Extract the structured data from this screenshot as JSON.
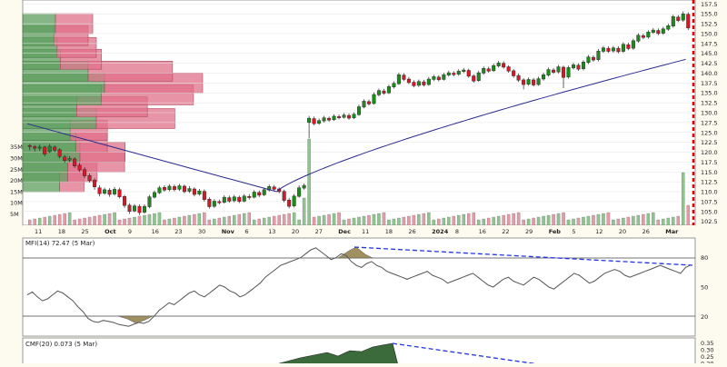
{
  "chart_data": [
    {
      "type": "candlestick",
      "title": "",
      "x_tick_labels": [
        "11",
        "18",
        "25",
        "Oct",
        "9",
        "16",
        "23",
        "30",
        "Nov",
        "6",
        "13",
        "20",
        "27",
        "Dec",
        "11",
        "18",
        "26",
        "2024",
        "8",
        "16",
        "22",
        "29",
        "Feb",
        "5",
        "12",
        "20",
        "26",
        "Mar"
      ],
      "y_tick_labels": [
        "102.5",
        "105.0",
        "107.5",
        "110.0",
        "112.5",
        "115.0",
        "117.5",
        "120.0",
        "122.5",
        "125.0",
        "127.5",
        "130.0",
        "132.5",
        "135.0",
        "137.5",
        "140.0",
        "142.5",
        "145.0",
        "147.5",
        "150.0",
        "152.5",
        "155.0",
        "157.5"
      ],
      "ylim": [
        101.5,
        158.5
      ],
      "volume_tick_labels": [
        "5M",
        "10M",
        "15M",
        "20M",
        "25M",
        "30M",
        "35M"
      ],
      "candles": [
        [
          121.7,
          121.4,
          120.5,
          122.0
        ],
        [
          121.4,
          121.0,
          120.2,
          121.8
        ],
        [
          121.0,
          121.3,
          120.4,
          121.9
        ],
        [
          121.3,
          119.5,
          119.0,
          121.6
        ],
        [
          120.1,
          121.5,
          119.8,
          122.0
        ],
        [
          121.3,
          120.5,
          120.0,
          121.7
        ],
        [
          120.6,
          118.9,
          118.4,
          121.0
        ],
        [
          118.8,
          117.9,
          117.3,
          119.3
        ],
        [
          118.0,
          118.4,
          117.5,
          119.0
        ],
        [
          118.3,
          116.5,
          116.0,
          118.7
        ],
        [
          116.7,
          115.5,
          115.0,
          117.3
        ],
        [
          115.6,
          114.0,
          113.4,
          116.2
        ],
        [
          114.1,
          112.8,
          112.3,
          114.6
        ],
        [
          112.9,
          111.2,
          110.5,
          113.4
        ],
        [
          111.0,
          109.5,
          108.8,
          111.6
        ],
        [
          109.6,
          110.5,
          109.2,
          111.0
        ],
        [
          110.4,
          109.3,
          108.7,
          110.9
        ],
        [
          109.4,
          110.6,
          109.0,
          111.2
        ],
        [
          110.5,
          108.7,
          108.3,
          111.0
        ],
        [
          108.8,
          106.5,
          105.9,
          109.2
        ],
        [
          106.6,
          105.0,
          104.4,
          107.1
        ],
        [
          105.1,
          106.4,
          104.8,
          106.9
        ],
        [
          106.3,
          104.7,
          104.1,
          106.8
        ],
        [
          104.8,
          106.3,
          104.4,
          106.8
        ],
        [
          106.2,
          108.7,
          105.8,
          109.2
        ],
        [
          108.6,
          109.8,
          108.3,
          110.3
        ],
        [
          109.7,
          111.0,
          109.4,
          111.5
        ],
        [
          111.1,
          110.4,
          110.0,
          111.6
        ],
        [
          110.5,
          111.4,
          110.1,
          111.9
        ],
        [
          111.3,
          110.5,
          110.1,
          111.8
        ],
        [
          110.6,
          111.5,
          110.2,
          112.0
        ],
        [
          111.4,
          110.0,
          109.6,
          111.8
        ],
        [
          110.1,
          110.8,
          109.7,
          111.4
        ],
        [
          110.7,
          109.3,
          108.8,
          111.1
        ],
        [
          109.4,
          110.2,
          109.0,
          110.7
        ],
        [
          110.1,
          108.0,
          107.5,
          110.6
        ],
        [
          108.1,
          106.2,
          105.7,
          108.6
        ],
        [
          106.3,
          107.6,
          105.9,
          108.1
        ],
        [
          107.5,
          107.2,
          106.8,
          108.0
        ],
        [
          107.3,
          108.6,
          107.0,
          109.1
        ],
        [
          108.5,
          107.6,
          107.2,
          109.0
        ],
        [
          107.7,
          108.7,
          107.3,
          109.2
        ],
        [
          108.6,
          107.5,
          107.1,
          109.0
        ],
        [
          107.6,
          108.9,
          107.3,
          109.4
        ],
        [
          108.8,
          108.5,
          108.0,
          109.4
        ],
        [
          108.6,
          109.9,
          108.3,
          110.4
        ],
        [
          109.8,
          109.1,
          108.6,
          110.3
        ],
        [
          109.2,
          110.5,
          108.9,
          111.0
        ],
        [
          110.4,
          111.3,
          110.0,
          111.8
        ],
        [
          111.2,
          110.6,
          110.2,
          111.7
        ],
        [
          110.7,
          110.0,
          109.6,
          111.1
        ],
        [
          110.1,
          107.8,
          107.3,
          110.5
        ],
        [
          107.9,
          106.3,
          105.8,
          108.4
        ],
        [
          106.4,
          108.9,
          106.0,
          109.4
        ],
        [
          108.8,
          111.0,
          108.5,
          111.6
        ],
        [
          110.9,
          111.6,
          110.5,
          112.1
        ],
        [
          127.5,
          128.6,
          123.5,
          129.2
        ],
        [
          128.5,
          127.2,
          126.8,
          129.0
        ],
        [
          127.3,
          128.0,
          126.9,
          128.5
        ],
        [
          127.9,
          128.7,
          127.5,
          129.2
        ],
        [
          128.6,
          128.1,
          127.7,
          129.0
        ],
        [
          128.2,
          129.1,
          127.9,
          129.6
        ],
        [
          129.0,
          128.7,
          128.3,
          129.5
        ],
        [
          128.8,
          129.4,
          128.5,
          129.9
        ],
        [
          129.3,
          128.6,
          128.2,
          129.8
        ],
        [
          128.7,
          129.6,
          128.4,
          130.1
        ],
        [
          129.5,
          131.5,
          129.2,
          132.0
        ],
        [
          131.4,
          132.9,
          131.1,
          133.4
        ],
        [
          132.8,
          132.2,
          131.8,
          133.3
        ],
        [
          132.3,
          134.6,
          132.0,
          135.1
        ],
        [
          134.5,
          135.6,
          134.1,
          136.1
        ],
        [
          135.5,
          134.9,
          134.5,
          136.0
        ],
        [
          135.0,
          136.6,
          134.7,
          137.1
        ],
        [
          136.5,
          137.4,
          136.1,
          137.9
        ],
        [
          137.3,
          139.6,
          137.0,
          140.1
        ],
        [
          139.5,
          138.4,
          138.0,
          140.0
        ],
        [
          138.5,
          137.6,
          137.2,
          139.0
        ],
        [
          137.7,
          136.8,
          136.4,
          138.2
        ],
        [
          136.9,
          137.9,
          136.5,
          138.4
        ],
        [
          137.8,
          137.0,
          136.6,
          138.3
        ],
        [
          137.1,
          138.5,
          136.8,
          139.0
        ],
        [
          138.4,
          139.1,
          138.0,
          139.6
        ],
        [
          139.0,
          138.3,
          137.9,
          139.5
        ],
        [
          138.4,
          139.6,
          138.1,
          140.1
        ],
        [
          139.5,
          140.1,
          139.1,
          140.6
        ],
        [
          140.0,
          139.6,
          139.2,
          140.5
        ],
        [
          139.7,
          140.5,
          139.3,
          141.0
        ],
        [
          140.4,
          140.8,
          140.0,
          141.3
        ],
        [
          140.7,
          139.2,
          138.8,
          141.1
        ],
        [
          139.3,
          138.0,
          137.6,
          139.7
        ],
        [
          138.1,
          140.1,
          137.8,
          140.6
        ],
        [
          140.0,
          141.2,
          139.6,
          141.7
        ],
        [
          141.1,
          140.5,
          140.1,
          141.6
        ],
        [
          140.6,
          141.9,
          140.3,
          142.4
        ],
        [
          141.8,
          142.6,
          141.4,
          143.1
        ],
        [
          142.5,
          141.5,
          141.1,
          143.0
        ],
        [
          141.6,
          140.5,
          140.1,
          142.0
        ],
        [
          140.6,
          139.3,
          138.8,
          141.0
        ],
        [
          139.4,
          138.2,
          137.8,
          139.9
        ],
        [
          138.3,
          137.1,
          135.9,
          138.7
        ],
        [
          137.2,
          138.4,
          136.8,
          138.9
        ],
        [
          138.3,
          137.0,
          136.6,
          138.8
        ],
        [
          137.1,
          138.6,
          136.8,
          139.1
        ],
        [
          138.5,
          139.6,
          138.1,
          140.1
        ],
        [
          139.5,
          140.9,
          139.1,
          141.4
        ],
        [
          140.8,
          140.2,
          139.8,
          141.3
        ],
        [
          140.3,
          141.6,
          139.9,
          142.1
        ],
        [
          141.5,
          138.9,
          136.2,
          141.9
        ],
        [
          139.0,
          141.4,
          138.6,
          141.9
        ],
        [
          141.3,
          142.1,
          140.9,
          142.6
        ],
        [
          142.0,
          141.0,
          140.6,
          142.5
        ],
        [
          141.1,
          142.8,
          140.7,
          143.3
        ],
        [
          142.7,
          144.1,
          142.3,
          144.6
        ],
        [
          144.0,
          143.3,
          142.9,
          144.5
        ],
        [
          143.4,
          145.6,
          143.0,
          146.1
        ],
        [
          145.5,
          146.4,
          145.1,
          146.9
        ],
        [
          146.3,
          145.5,
          145.1,
          146.8
        ],
        [
          145.6,
          146.4,
          145.2,
          146.9
        ],
        [
          146.3,
          145.4,
          145.0,
          146.8
        ],
        [
          145.5,
          147.3,
          145.1,
          147.8
        ],
        [
          147.2,
          146.2,
          145.8,
          147.7
        ],
        [
          146.3,
          148.2,
          145.9,
          148.7
        ],
        [
          148.1,
          149.6,
          147.7,
          150.1
        ],
        [
          149.5,
          149.0,
          148.6,
          150.0
        ],
        [
          149.1,
          150.4,
          148.7,
          150.9
        ],
        [
          150.3,
          150.9,
          149.9,
          151.4
        ],
        [
          150.8,
          150.0,
          149.6,
          151.3
        ],
        [
          150.1,
          151.2,
          149.7,
          151.7
        ],
        [
          151.1,
          152.0,
          150.7,
          152.5
        ],
        [
          151.9,
          154.3,
          151.5,
          154.8
        ],
        [
          154.2,
          153.3,
          152.9,
          154.7
        ],
        [
          153.4,
          155.0,
          153.0,
          155.6
        ],
        [
          154.9,
          151.4,
          150.9,
          155.4
        ]
      ],
      "sma_last": 143.8,
      "volume_by_price_note": "horizontal volume-by-price bars (green=up volume, red=down volume)",
      "mfi": {
        "label": "MFI(14) 72.47 (5 Mar)",
        "y_tick_labels": [
          "20",
          "50",
          "80"
        ],
        "ylim": [
          0,
          100
        ],
        "values": [
          42,
          45,
          40,
          36,
          38,
          42,
          46,
          44,
          40,
          36,
          30,
          25,
          18,
          15,
          14,
          16,
          15,
          14,
          12,
          11,
          10,
          12,
          14,
          13,
          15,
          20,
          26,
          30,
          34,
          32,
          36,
          40,
          44,
          46,
          42,
          40,
          44,
          48,
          52,
          50,
          46,
          44,
          40,
          42,
          46,
          50,
          54,
          60,
          64,
          68,
          72,
          74,
          76,
          78,
          80,
          84,
          88,
          90,
          86,
          82,
          78,
          80,
          84,
          82,
          76,
          72,
          70,
          74,
          76,
          72,
          70,
          66,
          64,
          62,
          60,
          58,
          60,
          62,
          64,
          66,
          62,
          60,
          58,
          54,
          56,
          58,
          60,
          62,
          64,
          60,
          56,
          52,
          50,
          54,
          58,
          60,
          56,
          54,
          52,
          56,
          60,
          58,
          54,
          50,
          48,
          52,
          56,
          60,
          64,
          62,
          58,
          54,
          56,
          60,
          64,
          66,
          68,
          66,
          62,
          60,
          62,
          64,
          66,
          68,
          70,
          72,
          70,
          68,
          66,
          64,
          70,
          72.47
        ],
        "divergence_lines": "dashed blue trendlines"
      },
      "cmf": {
        "label": "CMF(20) 0.073 (5 Mar)",
        "y_tick_labels": [
          "0.35",
          "0.30",
          "0.25",
          "0.20"
        ],
        "ylim": [
          0.15,
          0.4
        ]
      }
    }
  ]
}
